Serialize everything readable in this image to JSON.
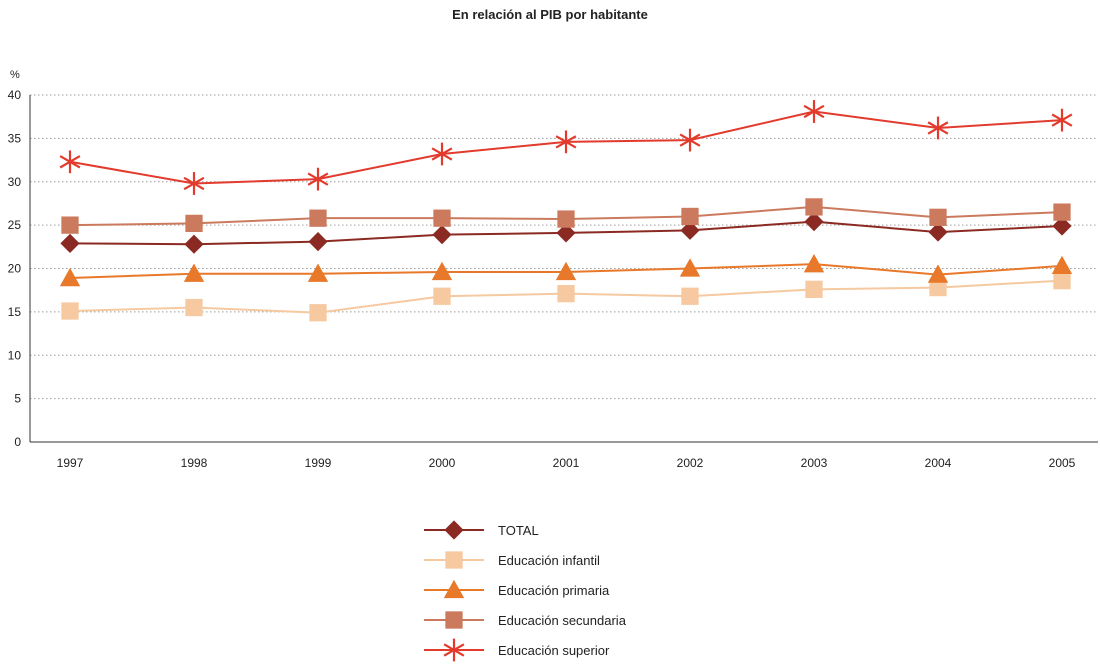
{
  "chart_data": {
    "type": "line",
    "title": "En relación al PIB por habitante",
    "ylabel": "%",
    "xlabel": "",
    "categories": [
      "1997",
      "1998",
      "1999",
      "2000",
      "2001",
      "2002",
      "2003",
      "2004",
      "2005"
    ],
    "yticks": [
      "0",
      "5",
      "10",
      "15",
      "20",
      "25",
      "30",
      "35",
      "40"
    ],
    "ylim": [
      0,
      40
    ],
    "grid": "horizontal-dotted",
    "legend_position": "bottom-center",
    "series": [
      {
        "name": "TOTAL",
        "color": "#8b2a23",
        "marker": "diamond",
        "values": [
          22.9,
          22.8,
          23.1,
          23.9,
          24.1,
          24.4,
          25.4,
          24.2,
          24.9
        ]
      },
      {
        "name": "Educación infantil",
        "color": "#f6c9a0",
        "marker": "square",
        "values": [
          15.1,
          15.5,
          14.9,
          16.8,
          17.1,
          16.8,
          17.6,
          17.8,
          18.6
        ]
      },
      {
        "name": "Educación primaria",
        "color": "#e8782a",
        "marker": "triangle",
        "values": [
          18.9,
          19.4,
          19.4,
          19.6,
          19.6,
          20.0,
          20.5,
          19.3,
          20.3
        ]
      },
      {
        "name": "Educación secundaria",
        "color": "#cc7a5e",
        "marker": "square",
        "values": [
          25.0,
          25.2,
          25.8,
          25.8,
          25.7,
          26.0,
          27.1,
          25.9,
          26.5
        ]
      },
      {
        "name": "Educación superior",
        "color": "#e23a2c",
        "marker": "asterisk",
        "values": [
          32.3,
          29.8,
          30.3,
          33.2,
          34.6,
          34.8,
          38.1,
          36.2,
          37.1
        ]
      }
    ]
  }
}
